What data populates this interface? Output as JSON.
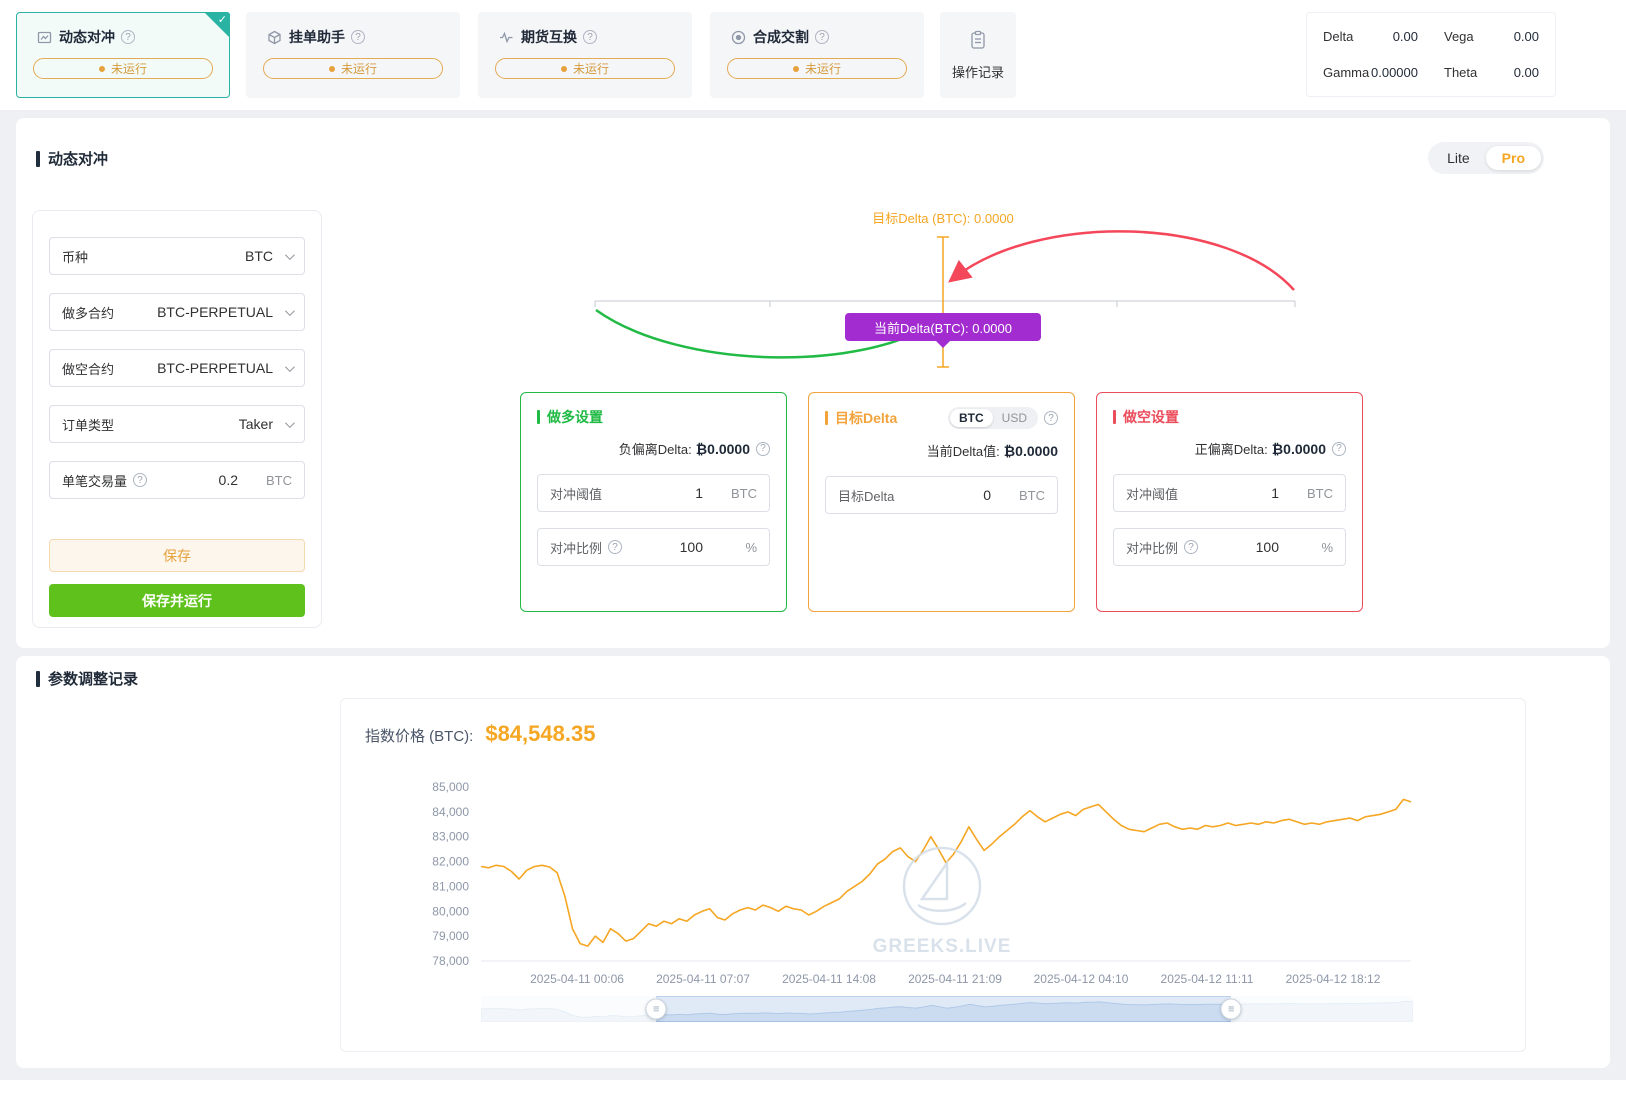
{
  "colors": {
    "accent_orange": "#f5a623",
    "teal_selected": "#2ab3a2",
    "green": "#21ba45",
    "red": "#eb4d5c",
    "purple": "#a22ccf",
    "status_orange": "#e6a23c"
  },
  "topbar": {
    "tabs": [
      {
        "label": "动态对冲",
        "status": "未运行"
      },
      {
        "label": "挂单助手",
        "status": "未运行"
      },
      {
        "label": "期货互换",
        "status": "未运行"
      },
      {
        "label": "合成交割",
        "status": "未运行"
      }
    ],
    "records_button": "操作记录",
    "greeks": {
      "delta_label": "Delta",
      "delta": "0.00",
      "vega_label": "Vega",
      "vega": "0.00",
      "gamma_label": "Gamma",
      "gamma": "0.00000",
      "theta_label": "Theta",
      "theta": "0.00"
    }
  },
  "main": {
    "title": "动态对冲",
    "mode_toggle": {
      "lite": "Lite",
      "pro": "Pro"
    },
    "form": {
      "currency": {
        "label": "币种",
        "value": "BTC"
      },
      "long_contract": {
        "label": "做多合约",
        "value": "BTC-PERPETUAL"
      },
      "short_contract": {
        "label": "做空合约",
        "value": "BTC-PERPETUAL"
      },
      "order_type": {
        "label": "订单类型",
        "value": "Taker"
      },
      "trade_size": {
        "label": "单笔交易量",
        "value": "0.2",
        "unit": "BTC"
      },
      "save_label": "保存",
      "save_run_label": "保存并运行"
    },
    "diagram": {
      "target_delta_label": "目标Delta (BTC): 0.0000",
      "current_delta_tooltip": "当前Delta(BTC): 0.0000"
    },
    "cards": {
      "long": {
        "title": "做多设置",
        "deviation_label": "负偏离Delta:",
        "deviation_value": "₿0.0000",
        "rows": [
          {
            "label": "对冲阈值",
            "value": "1",
            "unit": "BTC"
          },
          {
            "label": "对冲比例",
            "value": "100",
            "unit": "%"
          }
        ]
      },
      "target": {
        "title": "目标Delta",
        "unit_btc": "BTC",
        "unit_usd": "USD",
        "current_label": "当前Delta值:",
        "current_value": "₿0.0000",
        "rows": [
          {
            "label": "目标Delta",
            "value": "0",
            "unit": "BTC"
          }
        ]
      },
      "short": {
        "title": "做空设置",
        "deviation_label": "正偏离Delta:",
        "deviation_value": "₿0.0000",
        "rows": [
          {
            "label": "对冲阈值",
            "value": "1",
            "unit": "BTC"
          },
          {
            "label": "对冲比例",
            "value": "100",
            "unit": "%"
          }
        ]
      }
    }
  },
  "records": {
    "title": "参数调整记录",
    "price_label": "指数价格 (BTC):",
    "price_value": "$84,548.35",
    "watermark": "GREEKS.LIVE"
  },
  "chart_data": {
    "type": "line",
    "title": "指数价格 (BTC)",
    "line_color": "#f5a623",
    "ylim": [
      78000,
      85000
    ],
    "y_ticks": [
      78000,
      79000,
      80000,
      81000,
      82000,
      83000,
      84000,
      85000
    ],
    "x_tick_labels": [
      "2025-04-11 00:06",
      "2025-04-11 07:07",
      "2025-04-11 14:08",
      "2025-04-11 21:09",
      "2025-04-12 04:10",
      "2025-04-12 11:11",
      "2025-04-12 18:12"
    ],
    "latest_price": 84548.35,
    "brush": [
      0.188,
      0.805
    ],
    "values": [
      81800,
      81750,
      81850,
      81800,
      81600,
      81300,
      81650,
      81800,
      81850,
      81780,
      81550,
      80600,
      79300,
      78700,
      78600,
      79000,
      78750,
      79300,
      79100,
      78800,
      78900,
      79200,
      79500,
      79400,
      79600,
      79500,
      79700,
      79600,
      79850,
      80000,
      80100,
      79750,
      79650,
      79900,
      80050,
      80150,
      80050,
      80250,
      80150,
      80000,
      80200,
      80100,
      80050,
      79850,
      80000,
      80200,
      80350,
      80500,
      80800,
      81000,
      81200,
      81500,
      81900,
      82100,
      82400,
      82550,
      82200,
      82000,
      82450,
      83000,
      82500,
      81950,
      82300,
      82800,
      83400,
      82900,
      82450,
      82700,
      83000,
      83250,
      83500,
      83800,
      84050,
      83800,
      83600,
      83750,
      83900,
      84000,
      83850,
      84100,
      84200,
      84300,
      84000,
      83700,
      83450,
      83300,
      83250,
      83200,
      83350,
      83500,
      83550,
      83400,
      83300,
      83350,
      83300,
      83450,
      83400,
      83450,
      83550,
      83450,
      83500,
      83550,
      83500,
      83600,
      83550,
      83650,
      83700,
      83600,
      83500,
      83550,
      83500,
      83600,
      83650,
      83700,
      83750,
      83650,
      83800,
      83850,
      83900,
      84000,
      84100,
      84500,
      84400
    ]
  }
}
